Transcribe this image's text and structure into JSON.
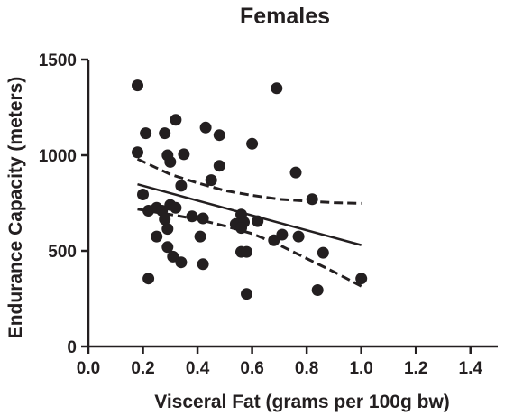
{
  "chart_data": {
    "type": "scatter",
    "title": "Females",
    "xlabel": "Visceral Fat (grams per 100g bw)",
    "ylabel": "Endurance Capacity (meters)",
    "xlim": [
      0.0,
      1.5
    ],
    "ylim": [
      0,
      1500
    ],
    "x_ticks": [
      "0.0",
      "0.2",
      "0.4",
      "0.6",
      "0.8",
      "1.0",
      "1.2",
      "1.4"
    ],
    "y_ticks": [
      "0",
      "500",
      "1000",
      "1500"
    ],
    "x_tick_values": [
      0.0,
      0.2,
      0.4,
      0.6,
      0.8,
      1.0,
      1.2,
      1.4
    ],
    "y_tick_values": [
      0,
      500,
      1000,
      1500
    ],
    "points": [
      {
        "x": 0.18,
        "y": 1365
      },
      {
        "x": 0.69,
        "y": 1350
      },
      {
        "x": 0.32,
        "y": 1185
      },
      {
        "x": 0.43,
        "y": 1145
      },
      {
        "x": 0.21,
        "y": 1115
      },
      {
        "x": 0.28,
        "y": 1115
      },
      {
        "x": 0.48,
        "y": 1105
      },
      {
        "x": 0.6,
        "y": 1060
      },
      {
        "x": 0.18,
        "y": 1015
      },
      {
        "x": 0.29,
        "y": 1000
      },
      {
        "x": 0.35,
        "y": 1005
      },
      {
        "x": 0.3,
        "y": 965
      },
      {
        "x": 0.48,
        "y": 945
      },
      {
        "x": 0.76,
        "y": 910
      },
      {
        "x": 0.45,
        "y": 870
      },
      {
        "x": 0.34,
        "y": 840
      },
      {
        "x": 0.2,
        "y": 795
      },
      {
        "x": 0.82,
        "y": 770
      },
      {
        "x": 0.22,
        "y": 710
      },
      {
        "x": 0.25,
        "y": 725
      },
      {
        "x": 0.27,
        "y": 710
      },
      {
        "x": 0.3,
        "y": 740
      },
      {
        "x": 0.32,
        "y": 725
      },
      {
        "x": 0.38,
        "y": 680
      },
      {
        "x": 0.42,
        "y": 670
      },
      {
        "x": 0.56,
        "y": 690
      },
      {
        "x": 0.28,
        "y": 665
      },
      {
        "x": 0.54,
        "y": 640
      },
      {
        "x": 0.57,
        "y": 650
      },
      {
        "x": 0.62,
        "y": 655
      },
      {
        "x": 0.29,
        "y": 615
      },
      {
        "x": 0.56,
        "y": 620
      },
      {
        "x": 0.25,
        "y": 575
      },
      {
        "x": 0.41,
        "y": 575
      },
      {
        "x": 0.71,
        "y": 585
      },
      {
        "x": 0.68,
        "y": 555
      },
      {
        "x": 0.77,
        "y": 575
      },
      {
        "x": 0.29,
        "y": 520
      },
      {
        "x": 0.56,
        "y": 495
      },
      {
        "x": 0.58,
        "y": 495
      },
      {
        "x": 0.86,
        "y": 490
      },
      {
        "x": 0.31,
        "y": 470
      },
      {
        "x": 0.34,
        "y": 440
      },
      {
        "x": 0.42,
        "y": 430
      },
      {
        "x": 0.22,
        "y": 355
      },
      {
        "x": 1.0,
        "y": 355
      },
      {
        "x": 0.84,
        "y": 295
      },
      {
        "x": 0.58,
        "y": 275
      }
    ],
    "fit_line": {
      "x": [
        0.18,
        1.0
      ],
      "y": [
        848,
        530
      ]
    },
    "ci_upper": {
      "x": [
        0.18,
        0.3,
        0.4,
        0.5,
        0.6,
        0.7,
        0.8,
        0.9,
        1.0
      ],
      "y": [
        980,
        900,
        855,
        815,
        790,
        770,
        760,
        752,
        748
      ]
    },
    "ci_lower": {
      "x": [
        0.18,
        0.3,
        0.4,
        0.5,
        0.6,
        0.7,
        0.8,
        0.9,
        1.0
      ],
      "y": [
        718,
        690,
        665,
        630,
        590,
        530,
        460,
        390,
        315
      ]
    }
  }
}
